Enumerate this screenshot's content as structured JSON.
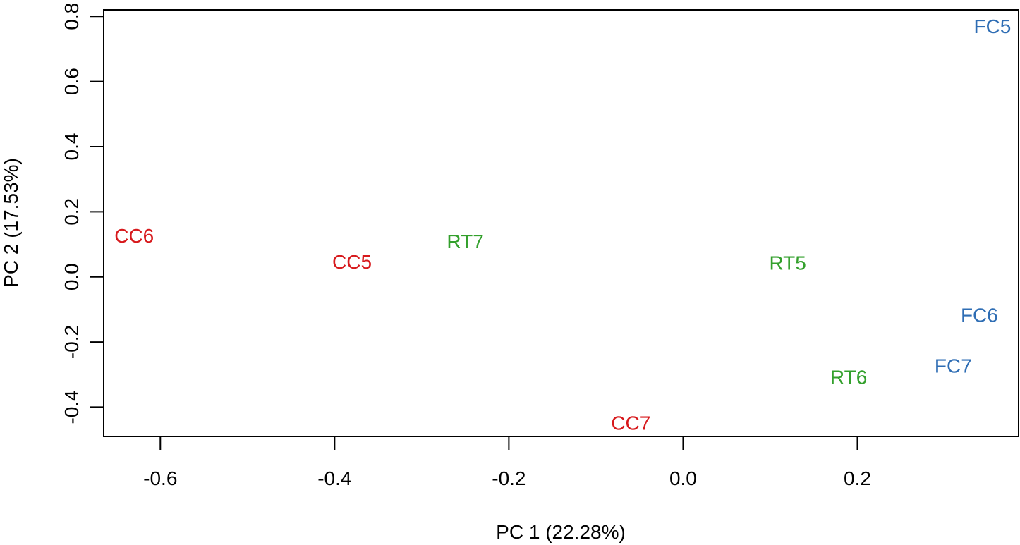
{
  "chart_data": {
    "type": "scatter",
    "title": "",
    "xlabel": "PC 1 (22.28%)",
    "ylabel": "PC 2 (17.53%)",
    "xlim": [
      -0.665,
      0.385
    ],
    "ylim": [
      -0.49,
      0.82
    ],
    "x_ticks": [
      {
        "value": -0.6,
        "label": "-0.6"
      },
      {
        "value": -0.4,
        "label": "-0.4"
      },
      {
        "value": -0.2,
        "label": "-0.2"
      },
      {
        "value": 0.0,
        "label": "0.0"
      },
      {
        "value": 0.2,
        "label": "0.2"
      }
    ],
    "y_ticks": [
      {
        "value": -0.4,
        "label": "-0.4"
      },
      {
        "value": -0.2,
        "label": "-0.2"
      },
      {
        "value": 0.0,
        "label": "0.0"
      },
      {
        "value": 0.2,
        "label": "0.2"
      },
      {
        "value": 0.4,
        "label": "0.4"
      },
      {
        "value": 0.6,
        "label": "0.6"
      },
      {
        "value": 0.8,
        "label": "0.8"
      }
    ],
    "grid": false,
    "legend": "none",
    "marker": "text",
    "points": [
      {
        "label": "CC6",
        "x": -0.63,
        "y": 0.127,
        "color": "#D7191C"
      },
      {
        "label": "CC5",
        "x": -0.38,
        "y": 0.047,
        "color": "#D7191C"
      },
      {
        "label": "CC7",
        "x": -0.06,
        "y": -0.448,
        "color": "#D7191C"
      },
      {
        "label": "RT7",
        "x": -0.25,
        "y": 0.11,
        "color": "#33A02C"
      },
      {
        "label": "RT5",
        "x": 0.12,
        "y": 0.044,
        "color": "#33A02C"
      },
      {
        "label": "RT6",
        "x": 0.19,
        "y": -0.307,
        "color": "#33A02C"
      },
      {
        "label": "FC5",
        "x": 0.355,
        "y": 0.77,
        "color": "#2E6DB4"
      },
      {
        "label": "FC6",
        "x": 0.34,
        "y": -0.117,
        "color": "#2E6DB4"
      },
      {
        "label": "FC7",
        "x": 0.31,
        "y": -0.272,
        "color": "#2E6DB4"
      }
    ]
  }
}
